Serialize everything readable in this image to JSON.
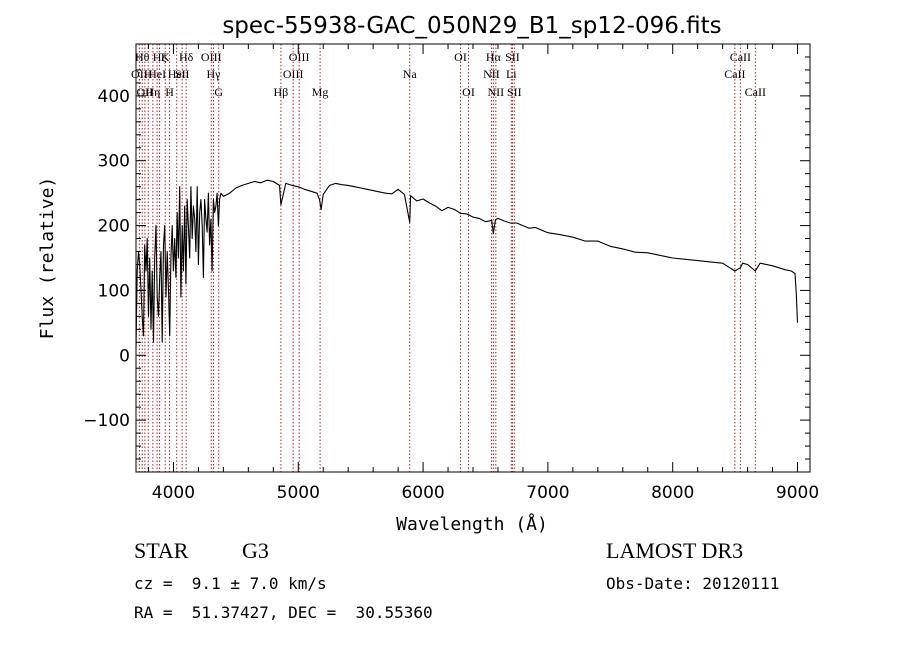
{
  "chart_data": {
    "type": "line",
    "title": "spec-55938-GAC_050N29_B1_sp12-096.fits",
    "xlabel": "Wavelength (Å)",
    "ylabel": "Flux (relative)",
    "xlim": [
      3700,
      9100
    ],
    "ylim": [
      -180,
      480
    ],
    "xticks": [
      4000,
      5000,
      6000,
      7000,
      8000,
      9000
    ],
    "yticks": [
      -100,
      0,
      100,
      200,
      300,
      400
    ],
    "series": [
      {
        "name": "spectrum",
        "x": [
          3700,
          3710,
          3720,
          3730,
          3740,
          3750,
          3760,
          3770,
          3780,
          3790,
          3800,
          3810,
          3820,
          3830,
          3840,
          3850,
          3860,
          3870,
          3880,
          3890,
          3900,
          3910,
          3920,
          3930,
          3940,
          3950,
          3960,
          3970,
          3980,
          3990,
          4000,
          4010,
          4020,
          4030,
          4040,
          4050,
          4060,
          4070,
          4080,
          4090,
          4100,
          4110,
          4120,
          4130,
          4140,
          4150,
          4160,
          4170,
          4180,
          4190,
          4200,
          4210,
          4220,
          4230,
          4240,
          4250,
          4260,
          4270,
          4280,
          4290,
          4300,
          4310,
          4320,
          4330,
          4340,
          4350,
          4360,
          4370,
          4380,
          4400,
          4450,
          4500,
          4550,
          4600,
          4650,
          4700,
          4750,
          4800,
          4850,
          4861,
          4900,
          4950,
          5000,
          5050,
          5100,
          5150,
          5170,
          5183,
          5200,
          5250,
          5300,
          5350,
          5400,
          5450,
          5500,
          5550,
          5600,
          5650,
          5700,
          5750,
          5800,
          5850,
          5893,
          5900,
          5950,
          6000,
          6050,
          6100,
          6150,
          6200,
          6250,
          6300,
          6350,
          6400,
          6450,
          6500,
          6550,
          6563,
          6580,
          6600,
          6650,
          6700,
          6750,
          6800,
          6850,
          6900,
          6950,
          7000,
          7100,
          7200,
          7300,
          7400,
          7500,
          7600,
          7700,
          7800,
          7900,
          8000,
          8100,
          8200,
          8300,
          8400,
          8498,
          8542,
          8560,
          8600,
          8662,
          8700,
          8800,
          8900,
          8950,
          8980,
          8990,
          9000
        ],
        "values": [
          10,
          130,
          160,
          140,
          100,
          60,
          30,
          170,
          130,
          180,
          60,
          150,
          40,
          130,
          20,
          150,
          200,
          90,
          60,
          120,
          160,
          20,
          170,
          200,
          90,
          160,
          100,
          30,
          150,
          200,
          130,
          180,
          120,
          220,
          150,
          260,
          90,
          200,
          130,
          230,
          110,
          240,
          200,
          150,
          260,
          180,
          230,
          210,
          160,
          260,
          140,
          220,
          240,
          200,
          120,
          240,
          210,
          190,
          250,
          170,
          210,
          130,
          240,
          220,
          230,
          250,
          200,
          240,
          250,
          245,
          250,
          258,
          262,
          265,
          268,
          266,
          270,
          268,
          262,
          232,
          265,
          262,
          260,
          256,
          253,
          250,
          240,
          225,
          248,
          262,
          265,
          263,
          262,
          260,
          258,
          256,
          254,
          252,
          250,
          249,
          256,
          248,
          205,
          246,
          238,
          241,
          235,
          230,
          223,
          228,
          225,
          219,
          218,
          213,
          211,
          206,
          208,
          188,
          209,
          211,
          207,
          204,
          204,
          200,
          196,
          197,
          193,
          189,
          186,
          182,
          176,
          176,
          168,
          164,
          159,
          158,
          154,
          150,
          148,
          146,
          144,
          142,
          130,
          135,
          142,
          140,
          130,
          142,
          138,
          132,
          130,
          126,
          95,
          50
        ]
      }
    ],
    "lines": [
      {
        "x": 3727,
        "label": "OII",
        "row": 2
      },
      {
        "x": 3750,
        "label": "Hθ",
        "row": 1
      },
      {
        "x": 3771,
        "label": "OII",
        "row": 3
      },
      {
        "x": 3798,
        "label": "H",
        "row": 2
      },
      {
        "x": 3835,
        "label": "Hη",
        "row": 3
      },
      {
        "x": 3869,
        "label": "HeI",
        "row": 2
      },
      {
        "x": 3889,
        "label": "Hζ",
        "row": 1
      },
      {
        "x": 3934,
        "label": "K",
        "row": 1
      },
      {
        "x": 3969,
        "label": "H",
        "row": 3
      },
      {
        "x": 4026,
        "label": "HeI",
        "row": 2
      },
      {
        "x": 4070,
        "label": "SII",
        "row": 2
      },
      {
        "x": 4102,
        "label": "Hδ",
        "row": 1
      },
      {
        "x": 4303,
        "label": "OIII",
        "row": 1
      },
      {
        "x": 4321,
        "label": "Hγ",
        "row": 2
      },
      {
        "x": 4363,
        "label": "G",
        "row": 3
      },
      {
        "x": 4861,
        "label": "Hβ",
        "row": 3
      },
      {
        "x": 4959,
        "label": "OIII",
        "row": 2
      },
      {
        "x": 5007,
        "label": "OIII",
        "row": 1
      },
      {
        "x": 5175,
        "label": "Mg",
        "row": 3
      },
      {
        "x": 5893,
        "label": "Na",
        "row": 2
      },
      {
        "x": 6300,
        "label": "OI",
        "row": 1
      },
      {
        "x": 6364,
        "label": "OI",
        "row": 3
      },
      {
        "x": 6548,
        "label": "NII",
        "row": 2
      },
      {
        "x": 6563,
        "label": "Hα",
        "row": 1
      },
      {
        "x": 6583,
        "label": "NII",
        "row": 3
      },
      {
        "x": 6707,
        "label": "Li",
        "row": 2
      },
      {
        "x": 6716,
        "label": "SII",
        "row": 1
      },
      {
        "x": 6731,
        "label": "SII",
        "row": 3
      },
      {
        "x": 8498,
        "label": "CaII",
        "row": 2
      },
      {
        "x": 8542,
        "label": "CaII",
        "row": 1
      },
      {
        "x": 8662,
        "label": "CaII",
        "row": 3
      }
    ]
  },
  "info": {
    "object_class": "STAR",
    "subclass": "G3",
    "survey": "LAMOST DR3",
    "velocity": "cz =  9.1 ± 7.0 km/s",
    "obs_date": "Obs-Date: 20120111",
    "coords": "RA =  51.37427, DEC =  30.55360"
  },
  "colors": {
    "line_marker": "#b22222",
    "spectrum": "#000000",
    "axes": "#000000"
  }
}
